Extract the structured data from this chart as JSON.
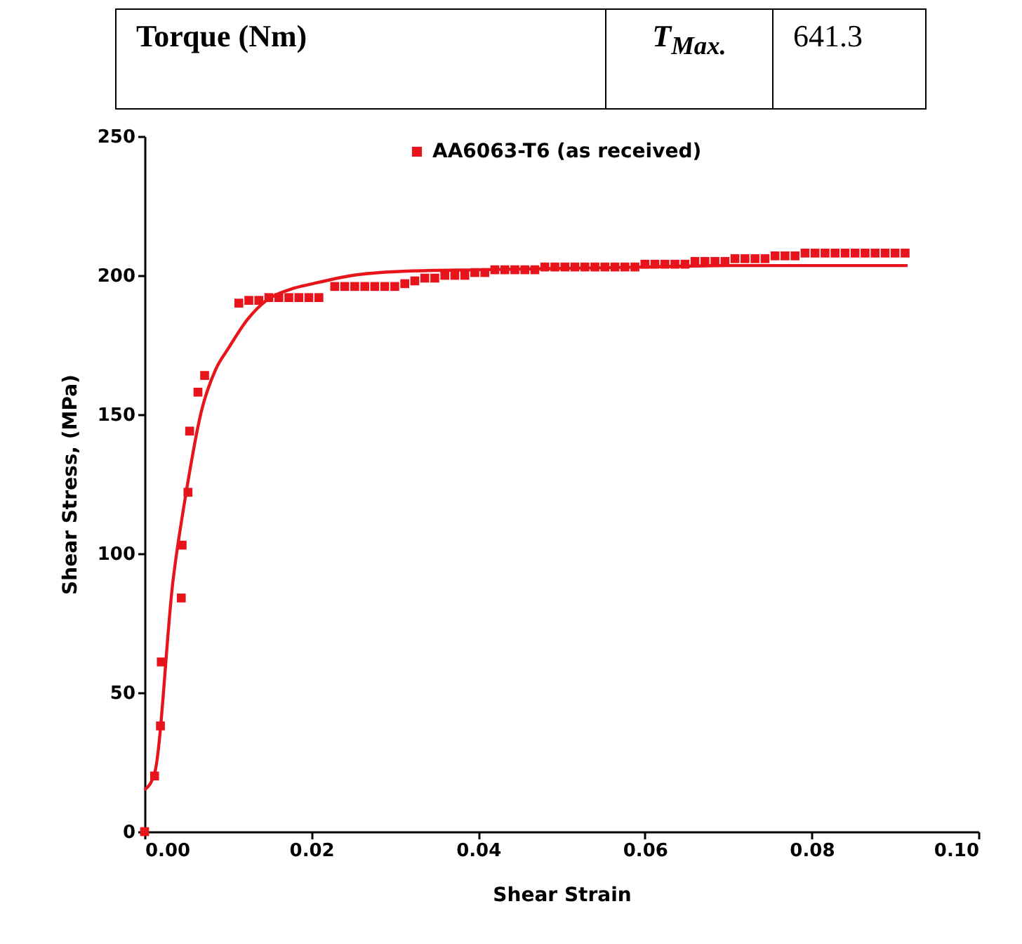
{
  "chart_data": {
    "type": "scatter",
    "xlabel": "Shear Strain",
    "ylabel": "Shear Stress, (MPa)",
    "marker": "square",
    "legend": "top",
    "grid": false,
    "annotations": [
      "Torque (Nm)",
      "T$_{Max.}$",
      "641.3"
    ],
    "xlim": [
      0,
      0.1
    ],
    "xticks": [
      {
        "value": 0,
        "label": "0.00"
      },
      {
        "value": 0.02,
        "label": "0.02"
      },
      {
        "value": 0.04,
        "label": "0.04"
      },
      {
        "value": 0.06,
        "label": "0.06"
      },
      {
        "value": 0.08,
        "label": "0.08"
      },
      {
        "value": 0.1,
        "label": "0.10"
      }
    ],
    "ylim": [
      0,
      250
    ],
    "yticks": [
      0,
      50,
      100,
      150,
      200,
      250
    ],
    "series": [
      {
        "name": "AA6063-T6 (as received)",
        "color": "#e8141b",
        "x": [
          0,
          0.0012,
          0.0019,
          0.002,
          0.0044,
          0.0045,
          0.0052,
          0.0054,
          0.0064,
          0.0072,
          0.0113,
          0.0125,
          0.0137,
          0.0149,
          0.0161,
          0.0173,
          0.0185,
          0.0197,
          0.0209,
          0.0228,
          0.024,
          0.0252,
          0.0264,
          0.0276,
          0.0288,
          0.03,
          0.0312,
          0.0324,
          0.0336,
          0.0348,
          0.036,
          0.0372,
          0.0384,
          0.0396,
          0.0408,
          0.042,
          0.0432,
          0.0444,
          0.0456,
          0.0468,
          0.048,
          0.0492,
          0.0504,
          0.0516,
          0.0528,
          0.054,
          0.0552,
          0.0564,
          0.0576,
          0.0588,
          0.06,
          0.0612,
          0.0624,
          0.0636,
          0.0648,
          0.066,
          0.0672,
          0.0684,
          0.0696,
          0.0708,
          0.072,
          0.0732,
          0.0744,
          0.0756,
          0.0768,
          0.078,
          0.0792,
          0.0804,
          0.0816,
          0.0828,
          0.084,
          0.0852,
          0.0864,
          0.0876,
          0.0888,
          0.09,
          0.0912
        ],
        "values": [
          0,
          20,
          38,
          61,
          84,
          103,
          122,
          144,
          158,
          164,
          190,
          191,
          191,
          192,
          192,
          192,
          192,
          192,
          192,
          196,
          196,
          196,
          196,
          196,
          196,
          196,
          197,
          198,
          199,
          199,
          200,
          200,
          200,
          201,
          201,
          202,
          202,
          202,
          202,
          202,
          203,
          203,
          203,
          203,
          203,
          203,
          203,
          203,
          203,
          203,
          204,
          204,
          204,
          204,
          204,
          205,
          205,
          205,
          205,
          206,
          206,
          206,
          206,
          207,
          207,
          207,
          208,
          208,
          208,
          208,
          208,
          208,
          208,
          208,
          208,
          208,
          208
        ]
      },
      {
        "type": "line",
        "marker": "none",
        "color": "#e8141b",
        "x": [
          0,
          0.0012,
          0.0034,
          0.0051,
          0.0068,
          0.0085,
          0.0101,
          0.0123,
          0.0146,
          0.0175,
          0.0202,
          0.025,
          0.0315,
          0.04,
          0.05,
          0.06,
          0.07,
          0.08,
          0.0915
        ],
        "values": [
          15,
          21,
          90,
          124,
          151,
          166,
          174,
          184,
          191,
          195,
          197,
          200,
          201.5,
          202,
          202.5,
          203,
          203.5,
          203.5,
          203.5
        ]
      }
    ]
  }
}
